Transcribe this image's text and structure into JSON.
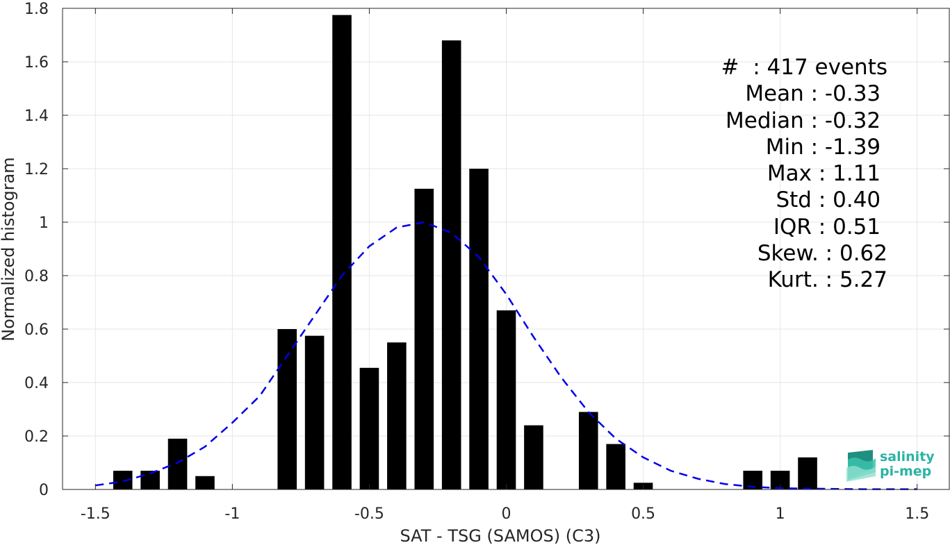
{
  "chart_data": {
    "type": "bar",
    "xlabel": "SAT - TSG (SAMOS) (C3)",
    "ylabel": "Normalized histogram",
    "xlim": [
      -1.62,
      1.62
    ],
    "ylim": [
      0,
      1.8
    ],
    "xticks": [
      -1.5,
      -1,
      -0.5,
      0,
      0.5,
      1,
      1.5
    ],
    "xtick_labels": [
      "-1.5",
      "-1",
      "-0.5",
      "0",
      "0.5",
      "1",
      "1.5"
    ],
    "yticks": [
      0,
      0.2,
      0.4,
      0.6,
      0.8,
      1,
      1.2,
      1.4,
      1.6,
      1.8
    ],
    "ytick_labels": [
      "0",
      "0.2",
      "0.4",
      "0.6",
      "0.8",
      "1",
      "1.2",
      "1.4",
      "1.6",
      "1.8"
    ],
    "grid": true,
    "bar_color": "#000000",
    "bar_width": 0.07,
    "bars": [
      {
        "x": -1.4,
        "y": 0.07
      },
      {
        "x": -1.3,
        "y": 0.07
      },
      {
        "x": -1.2,
        "y": 0.19
      },
      {
        "x": -1.1,
        "y": 0.05
      },
      {
        "x": -0.8,
        "y": 0.6
      },
      {
        "x": -0.7,
        "y": 0.575
      },
      {
        "x": -0.6,
        "y": 1.775
      },
      {
        "x": -0.5,
        "y": 0.455
      },
      {
        "x": -0.4,
        "y": 0.55
      },
      {
        "x": -0.3,
        "y": 1.125
      },
      {
        "x": -0.2,
        "y": 1.68
      },
      {
        "x": -0.1,
        "y": 1.2
      },
      {
        "x": 0.0,
        "y": 0.67
      },
      {
        "x": 0.1,
        "y": 0.24
      },
      {
        "x": 0.3,
        "y": 0.29
      },
      {
        "x": 0.4,
        "y": 0.17
      },
      {
        "x": 0.5,
        "y": 0.025
      },
      {
        "x": 0.9,
        "y": 0.07
      },
      {
        "x": 1.0,
        "y": 0.07
      },
      {
        "x": 1.1,
        "y": 0.12
      }
    ],
    "fit_curve": {
      "style": "dashed",
      "color": "#0000e6",
      "x": [
        -1.5,
        -1.4,
        -1.3,
        -1.2,
        -1.1,
        -1.0,
        -0.9,
        -0.8,
        -0.7,
        -0.6,
        -0.5,
        -0.4,
        -0.3,
        -0.2,
        -0.1,
        0.0,
        0.1,
        0.2,
        0.3,
        0.4,
        0.5,
        0.6,
        0.7,
        0.8,
        0.9,
        1.0,
        1.1,
        1.2,
        1.3,
        1.4,
        1.5
      ],
      "y": [
        0.015,
        0.03,
        0.06,
        0.1,
        0.16,
        0.25,
        0.35,
        0.5,
        0.65,
        0.8,
        0.91,
        0.98,
        1.0,
        0.96,
        0.87,
        0.73,
        0.57,
        0.42,
        0.29,
        0.19,
        0.12,
        0.07,
        0.04,
        0.02,
        0.01,
        0.005,
        0.003,
        0.002,
        0.001,
        0.001,
        0.001
      ]
    }
  },
  "stats": [
    "#  : 417 events",
    "Mean : -0.33 ",
    "Median : -0.32 ",
    "Min : -1.39 ",
    "Max : 1.11 ",
    "Std : 0.40 ",
    "IQR : 0.51 ",
    "Skew. : 0.62",
    "Kurt. : 5.27"
  ],
  "logo": {
    "line1": "salinity",
    "line2": "pi-mep",
    "color": "#2bb3a3"
  }
}
